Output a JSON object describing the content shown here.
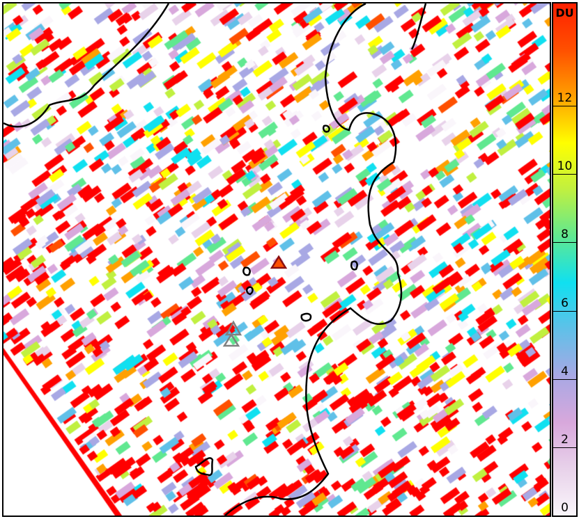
{
  "colorbar": {
    "unit": "DU",
    "min": 0,
    "max": 15,
    "ticks": [
      "0",
      "2",
      "4",
      "6",
      "8",
      "10",
      "12"
    ],
    "colors": [
      "#faf6fb",
      "#e8d2ea",
      "#d8a8dc",
      "#a8a8e4",
      "#60c0e8",
      "#10e0f0",
      "#60e890",
      "#c0f040",
      "#ffff00",
      "#ffa000",
      "#ff5000",
      "#ff2000"
    ]
  },
  "markers": [
    {
      "type": "triangle",
      "color": "#8b1010",
      "fill": "#ff5000"
    },
    {
      "type": "triangle",
      "color": "#808080",
      "fill": "none"
    },
    {
      "type": "triangle",
      "color": "#808080",
      "fill": "none"
    }
  ],
  "coastline_color": "#000000"
}
